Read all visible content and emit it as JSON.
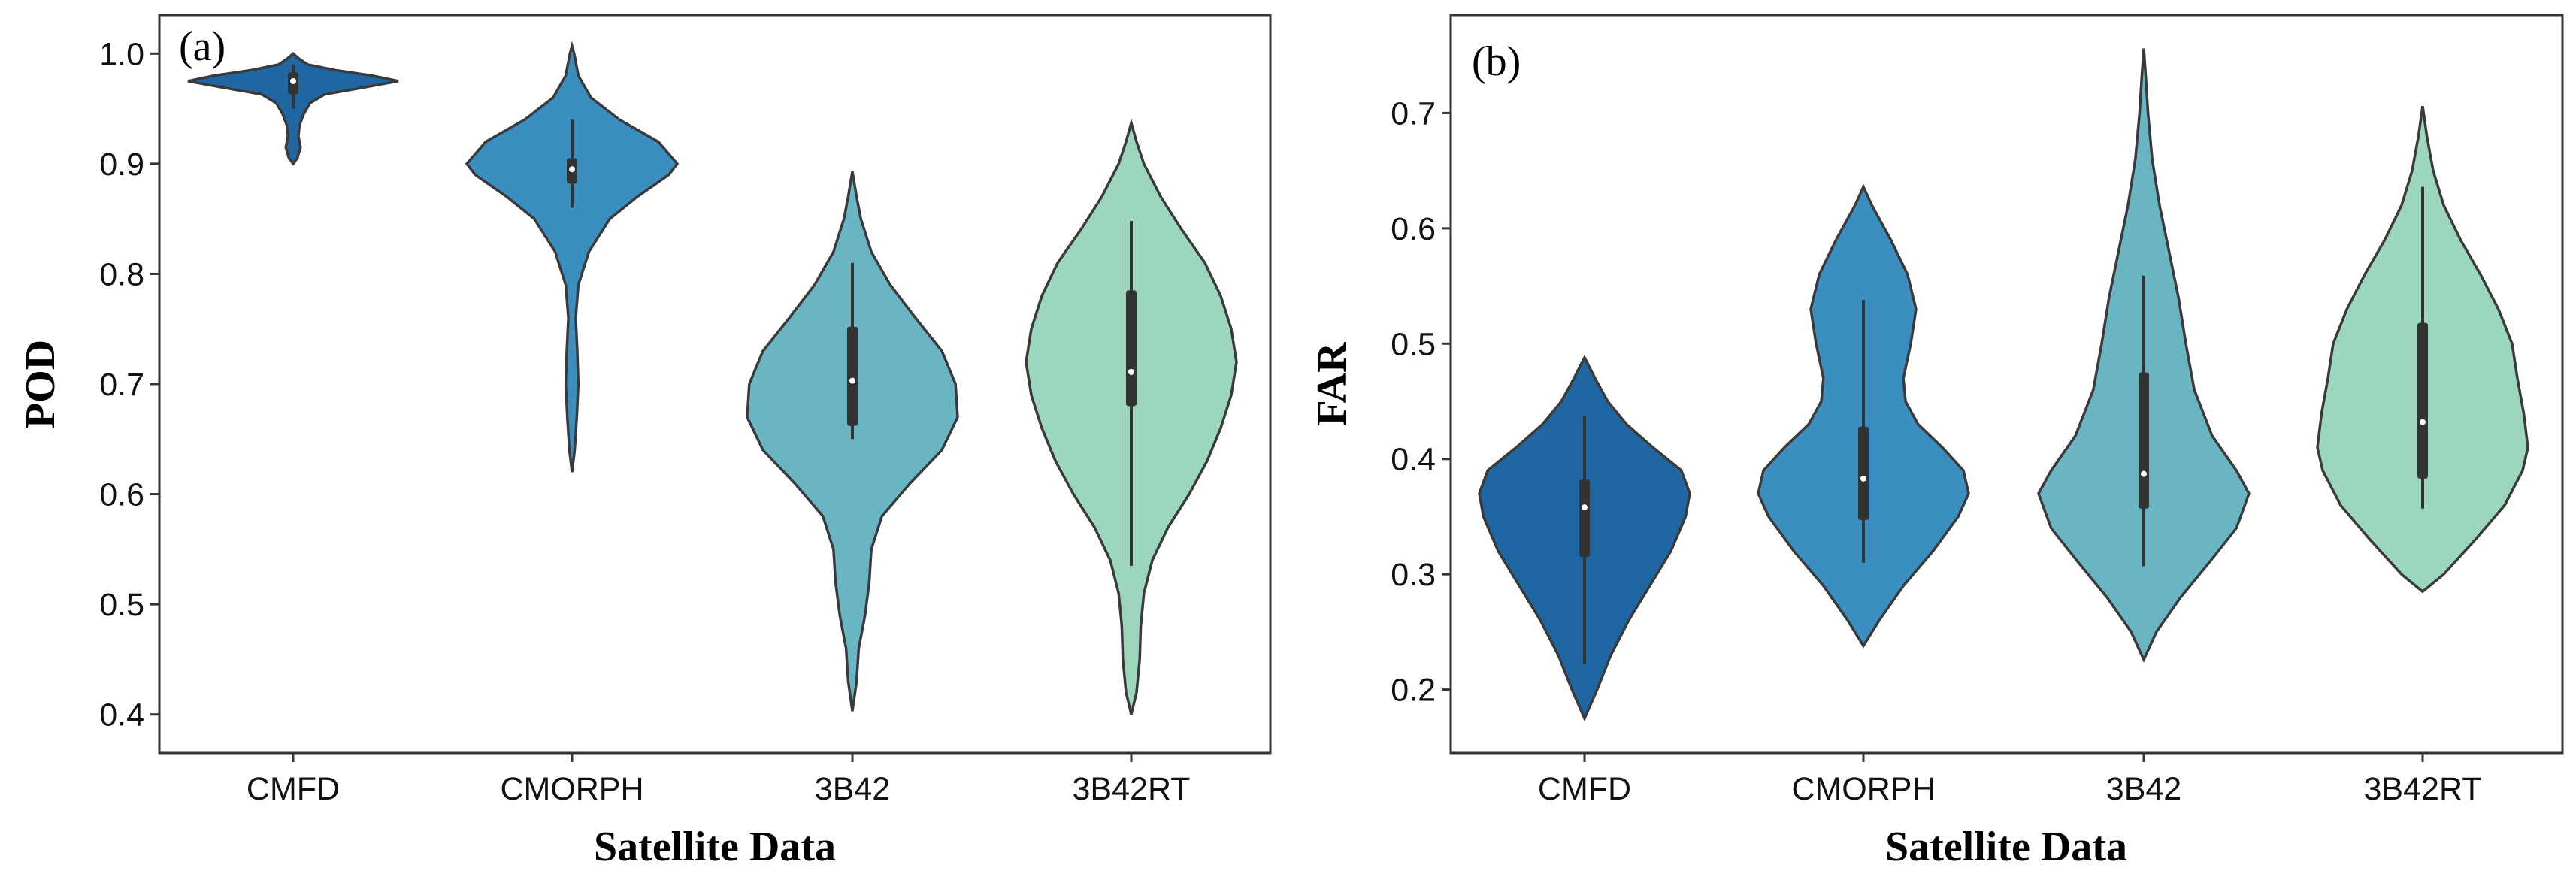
{
  "colors": {
    "CMFD": "#1f67a2",
    "CMORPH": "#3a8fc0",
    "3B42": "#6ab5c3",
    "3B42RT": "#9cd6bd"
  },
  "chart_data": [
    {
      "type": "violin",
      "panel_label": "(a)",
      "xlabel": "Satellite Data",
      "ylabel": "POD",
      "ylim": [
        0.365,
        1.035
      ],
      "yticks": [
        0.4,
        0.5,
        0.6,
        0.7,
        0.8,
        0.9,
        1.0
      ],
      "ytick_labels": [
        "0.4",
        "0.5",
        "0.6",
        "0.7",
        "0.8",
        "0.9",
        "1.0"
      ],
      "categories": [
        "CMFD",
        "CMORPH",
        "3B42",
        "3B42RT"
      ],
      "series": [
        {
          "name": "CMFD",
          "min": 0.9,
          "max": 1.0,
          "q1": 0.963,
          "q3": 0.983,
          "median": 0.975,
          "whisker_low": 0.95,
          "whisker_high": 0.99,
          "density": [
            [
              0.9,
              0.0
            ],
            [
              0.905,
              0.04
            ],
            [
              0.915,
              0.07
            ],
            [
              0.925,
              0.05
            ],
            [
              0.935,
              0.06
            ],
            [
              0.945,
              0.1
            ],
            [
              0.955,
              0.16
            ],
            [
              0.963,
              0.3
            ],
            [
              0.968,
              0.6
            ],
            [
              0.975,
              1.0
            ],
            [
              0.98,
              0.75
            ],
            [
              0.985,
              0.4
            ],
            [
              0.99,
              0.14
            ],
            [
              0.995,
              0.06
            ],
            [
              1.0,
              0.0
            ]
          ]
        },
        {
          "name": "CMORPH",
          "min": 0.62,
          "max": 1.007,
          "q1": 0.882,
          "q3": 0.905,
          "median": 0.895,
          "whisker_low": 0.86,
          "whisker_high": 0.94,
          "density": [
            [
              0.62,
              0.0
            ],
            [
              0.64,
              0.025
            ],
            [
              0.67,
              0.045
            ],
            [
              0.7,
              0.06
            ],
            [
              0.73,
              0.05
            ],
            [
              0.76,
              0.035
            ],
            [
              0.79,
              0.06
            ],
            [
              0.82,
              0.16
            ],
            [
              0.85,
              0.36
            ],
            [
              0.87,
              0.62
            ],
            [
              0.89,
              0.92
            ],
            [
              0.9,
              1.0
            ],
            [
              0.92,
              0.82
            ],
            [
              0.94,
              0.45
            ],
            [
              0.96,
              0.18
            ],
            [
              0.98,
              0.06
            ],
            [
              1.0,
              0.02
            ],
            [
              1.007,
              0.0
            ]
          ]
        },
        {
          "name": "3B42",
          "min": 0.403,
          "max": 0.893,
          "q1": 0.662,
          "q3": 0.752,
          "median": 0.703,
          "whisker_low": 0.65,
          "whisker_high": 0.81,
          "density": [
            [
              0.403,
              0.0
            ],
            [
              0.43,
              0.04
            ],
            [
              0.46,
              0.06
            ],
            [
              0.49,
              0.12
            ],
            [
              0.52,
              0.16
            ],
            [
              0.55,
              0.18
            ],
            [
              0.58,
              0.28
            ],
            [
              0.61,
              0.55
            ],
            [
              0.64,
              0.85
            ],
            [
              0.67,
              1.0
            ],
            [
              0.7,
              0.98
            ],
            [
              0.73,
              0.85
            ],
            [
              0.76,
              0.6
            ],
            [
              0.79,
              0.36
            ],
            [
              0.82,
              0.18
            ],
            [
              0.85,
              0.08
            ],
            [
              0.87,
              0.04
            ],
            [
              0.893,
              0.0
            ]
          ]
        },
        {
          "name": "3B42RT",
          "min": 0.4,
          "max": 0.937,
          "q1": 0.68,
          "q3": 0.785,
          "median": 0.711,
          "whisker_low": 0.535,
          "whisker_high": 0.848,
          "density": [
            [
              0.4,
              0.0
            ],
            [
              0.42,
              0.05
            ],
            [
              0.45,
              0.08
            ],
            [
              0.48,
              0.09
            ],
            [
              0.51,
              0.12
            ],
            [
              0.54,
              0.2
            ],
            [
              0.57,
              0.35
            ],
            [
              0.6,
              0.55
            ],
            [
              0.63,
              0.72
            ],
            [
              0.66,
              0.85
            ],
            [
              0.69,
              0.95
            ],
            [
              0.72,
              1.0
            ],
            [
              0.75,
              0.95
            ],
            [
              0.78,
              0.85
            ],
            [
              0.81,
              0.7
            ],
            [
              0.84,
              0.48
            ],
            [
              0.87,
              0.28
            ],
            [
              0.9,
              0.12
            ],
            [
              0.92,
              0.05
            ],
            [
              0.937,
              0.0
            ]
          ]
        }
      ]
    },
    {
      "type": "violin",
      "panel_label": "(b)",
      "xlabel": "Satellite Data",
      "ylabel": "FAR",
      "ylim": [
        0.145,
        0.785
      ],
      "yticks": [
        0.2,
        0.3,
        0.4,
        0.5,
        0.6,
        0.7
      ],
      "ytick_labels": [
        "0.2",
        "0.3",
        "0.4",
        "0.5",
        "0.6",
        "0.7"
      ],
      "categories": [
        "CMFD",
        "CMORPH",
        "3B42",
        "3B42RT"
      ],
      "series": [
        {
          "name": "CMFD",
          "min": 0.175,
          "max": 0.488,
          "q1": 0.315,
          "q3": 0.382,
          "median": 0.358,
          "whisker_low": 0.222,
          "whisker_high": 0.437,
          "density": [
            [
              0.175,
              0.0
            ],
            [
              0.2,
              0.12
            ],
            [
              0.23,
              0.25
            ],
            [
              0.26,
              0.42
            ],
            [
              0.29,
              0.62
            ],
            [
              0.32,
              0.82
            ],
            [
              0.35,
              0.96
            ],
            [
              0.37,
              1.0
            ],
            [
              0.39,
              0.92
            ],
            [
              0.41,
              0.65
            ],
            [
              0.43,
              0.4
            ],
            [
              0.45,
              0.22
            ],
            [
              0.47,
              0.1
            ],
            [
              0.488,
              0.0
            ]
          ]
        },
        {
          "name": "CMORPH",
          "min": 0.238,
          "max": 0.636,
          "q1": 0.347,
          "q3": 0.428,
          "median": 0.383,
          "whisker_low": 0.31,
          "whisker_high": 0.538,
          "density": [
            [
              0.238,
              0.0
            ],
            [
              0.26,
              0.15
            ],
            [
              0.29,
              0.38
            ],
            [
              0.32,
              0.66
            ],
            [
              0.35,
              0.9
            ],
            [
              0.37,
              1.0
            ],
            [
              0.39,
              0.95
            ],
            [
              0.41,
              0.75
            ],
            [
              0.43,
              0.52
            ],
            [
              0.45,
              0.4
            ],
            [
              0.47,
              0.38
            ],
            [
              0.5,
              0.45
            ],
            [
              0.53,
              0.5
            ],
            [
              0.56,
              0.42
            ],
            [
              0.59,
              0.26
            ],
            [
              0.62,
              0.08
            ],
            [
              0.636,
              0.0
            ]
          ]
        },
        {
          "name": "3B42",
          "min": 0.226,
          "max": 0.756,
          "q1": 0.357,
          "q3": 0.475,
          "median": 0.387,
          "whisker_low": 0.307,
          "whisker_high": 0.559,
          "density": [
            [
              0.226,
              0.0
            ],
            [
              0.25,
              0.12
            ],
            [
              0.28,
              0.35
            ],
            [
              0.31,
              0.62
            ],
            [
              0.34,
              0.88
            ],
            [
              0.37,
              1.0
            ],
            [
              0.39,
              0.88
            ],
            [
              0.42,
              0.65
            ],
            [
              0.46,
              0.48
            ],
            [
              0.5,
              0.4
            ],
            [
              0.54,
              0.33
            ],
            [
              0.58,
              0.24
            ],
            [
              0.62,
              0.15
            ],
            [
              0.66,
              0.08
            ],
            [
              0.7,
              0.04
            ],
            [
              0.73,
              0.02
            ],
            [
              0.756,
              0.0
            ]
          ]
        },
        {
          "name": "3B42RT",
          "min": 0.285,
          "max": 0.706,
          "q1": 0.383,
          "q3": 0.518,
          "median": 0.432,
          "whisker_low": 0.357,
          "whisker_high": 0.636,
          "density": [
            [
              0.285,
              0.0
            ],
            [
              0.3,
              0.2
            ],
            [
              0.33,
              0.5
            ],
            [
              0.36,
              0.78
            ],
            [
              0.39,
              0.95
            ],
            [
              0.41,
              1.0
            ],
            [
              0.44,
              0.96
            ],
            [
              0.47,
              0.9
            ],
            [
              0.5,
              0.85
            ],
            [
              0.53,
              0.72
            ],
            [
              0.56,
              0.55
            ],
            [
              0.59,
              0.36
            ],
            [
              0.62,
              0.2
            ],
            [
              0.65,
              0.1
            ],
            [
              0.68,
              0.04
            ],
            [
              0.706,
              0.0
            ]
          ]
        }
      ]
    }
  ]
}
